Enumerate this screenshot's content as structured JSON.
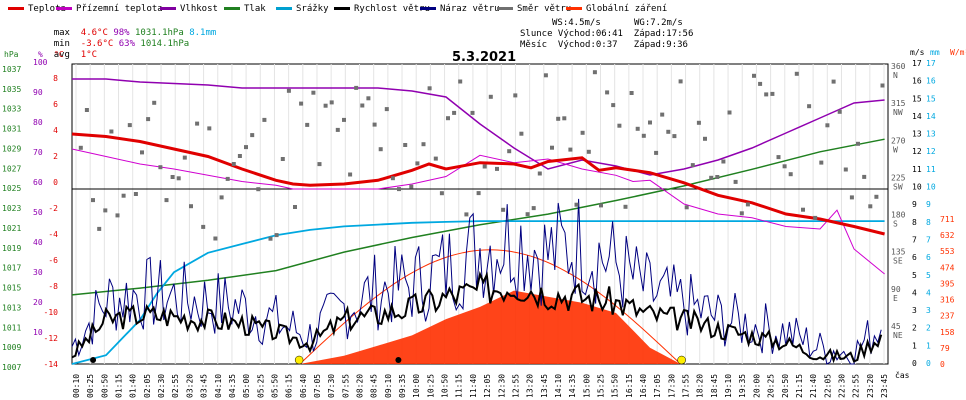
{
  "legend": [
    {
      "label": "Teplota",
      "color": "#e00000"
    },
    {
      "label": "Přízemní teplota",
      "color": "#c000c0"
    },
    {
      "label": "Vlhkost",
      "color": "#8000a0"
    },
    {
      "label": "Tlak",
      "color": "#208020"
    },
    {
      "label": "Srážky",
      "color": "#00a0d0"
    },
    {
      "label": "Rychlost větru",
      "color": "#000000"
    },
    {
      "label": "Náraz větru",
      "color": "#000080"
    },
    {
      "label": "Směr větru",
      "color": "#707070"
    },
    {
      "label": "Globální záření",
      "color": "#ff3000"
    }
  ],
  "stats": {
    "max_label": "max",
    "max_temp": "4.6°C",
    "max_hum": "98%",
    "max_press": "1031.1hPa",
    "rain": "8.1mm",
    "min_label": "min",
    "min_temp": "-3.6°C",
    "min_hum": "63%",
    "min_press": "1014.1hPa",
    "avg_label": "avg",
    "avg_temp": "1°C"
  },
  "info": {
    "ws": "WS:4.5m/s",
    "wg": "WG:7.2m/s",
    "sun": "Slunce Východ:06:41  Západ:17:56",
    "moon": "Měsíc  Východ:0:37   Západ:9:36"
  },
  "date": "5.3.2021",
  "units": {
    "hpa": "hPa",
    "pct": "%",
    "degc": "°C",
    "ms": "m/s",
    "mm": "mm",
    "wm2": "W/m²",
    "cas": "čas"
  },
  "colors": {
    "temp": "#e00000",
    "ground": "#d000d0",
    "hum": "#9000b0",
    "press": "#208020",
    "rain": "#00a8e0",
    "wind": "#000000",
    "gust": "#000080",
    "dir": "#707070",
    "rad": "#ff3000"
  },
  "chart_data": {
    "type": "line",
    "title": "5.3.2021",
    "x_ticks": [
      "00:10",
      "00:25",
      "00:50",
      "01:15",
      "01:40",
      "02:05",
      "02:30",
      "02:55",
      "03:20",
      "03:45",
      "04:10",
      "04:35",
      "05:00",
      "05:25",
      "05:50",
      "06:15",
      "06:40",
      "07:05",
      "07:30",
      "07:55",
      "08:20",
      "08:45",
      "09:10",
      "09:35",
      "10:00",
      "10:25",
      "10:50",
      "11:15",
      "11:40",
      "12:05",
      "12:30",
      "12:55",
      "13:20",
      "13:45",
      "14:10",
      "14:35",
      "15:00",
      "15:25",
      "15:50",
      "16:15",
      "16:40",
      "17:05",
      "17:30",
      "17:55",
      "18:20",
      "18:45",
      "19:10",
      "19:35",
      "20:00",
      "20:25",
      "20:50",
      "21:15",
      "21:40",
      "22:05",
      "22:30",
      "22:55",
      "23:20",
      "23:45"
    ],
    "axes": {
      "pressure_hpa": [
        "1037",
        "1035",
        "1033",
        "1031",
        "1029",
        "1027",
        "1025",
        "1023",
        "1021",
        "1019",
        "1017",
        "1015",
        "1013",
        "1011",
        "1009",
        "1007"
      ],
      "humidity_pct": [
        "100",
        "90",
        "80",
        "70",
        "60",
        "50",
        "40",
        "30",
        "20",
        "10"
      ],
      "temp_c": [
        "8",
        "6",
        "4",
        "2",
        "0",
        "-2",
        "-4",
        "-6",
        "-8",
        "-10",
        "-12",
        "-14"
      ],
      "dir_deg": [
        "360 N",
        "315 NW",
        "270 W",
        "225 SW",
        "180 S",
        "135 SE",
        "90 E",
        "45 NE"
      ],
      "wind_ms": [
        "17",
        "16",
        "15",
        "14",
        "13",
        "12",
        "11",
        "10",
        "9",
        "8",
        "7",
        "6",
        "5",
        "4",
        "3",
        "2",
        "1",
        "0"
      ],
      "rain_mm": [
        "17",
        "16",
        "15",
        "14",
        "13",
        "12",
        "11",
        "10",
        "9",
        "8",
        "7",
        "6",
        "5",
        "4",
        "3",
        "2",
        "1",
        "0"
      ],
      "rad_wm2": [
        "711",
        "632",
        "553",
        "474",
        "395",
        "316",
        "237",
        "158",
        "79",
        "0"
      ]
    },
    "series": [
      {
        "name": "Teplota",
        "unit": "°C",
        "x": [
          0,
          1,
          2,
          3,
          4,
          5,
          6,
          6.5,
          7,
          8,
          9,
          10,
          10.5,
          11,
          12,
          13,
          13.5,
          14,
          15,
          15.5,
          16,
          17,
          18,
          19,
          20,
          21,
          22,
          23,
          23.9
        ],
        "values": [
          4.4,
          4.2,
          3.8,
          3.2,
          2.6,
          1.6,
          0.7,
          0.4,
          0.3,
          0.4,
          0.7,
          1.5,
          2,
          1.6,
          2.1,
          2.0,
          1.7,
          2.2,
          2.5,
          1.5,
          1.7,
          1.3,
          0.5,
          -0.5,
          -1.1,
          -2.0,
          -2.4,
          -3.0,
          -3.6
        ]
      },
      {
        "name": "Přízemní teplota",
        "unit": "°C",
        "x": [
          0,
          1,
          2,
          3,
          5,
          6,
          6.5,
          9,
          10,
          11,
          12,
          13,
          14,
          15,
          16,
          16.5,
          17,
          18,
          19,
          20,
          21,
          22,
          22.5,
          23,
          23.9
        ],
        "values": [
          3.2,
          2.6,
          2.0,
          1.6,
          0.6,
          0.3,
          0,
          0,
          0.4,
          1.0,
          2.7,
          2.1,
          2.4,
          1.6,
          1.1,
          0.6,
          0.7,
          -1.2,
          -2.0,
          -2.3,
          -3.0,
          -3.2,
          -1.7,
          -4.8,
          -6.8
        ]
      },
      {
        "name": "Vlhkost",
        "unit": "%",
        "x": [
          0,
          1,
          2,
          4,
          5,
          6,
          7,
          8,
          9,
          10,
          11,
          12,
          13,
          14,
          15,
          16,
          17,
          18,
          19,
          20,
          21,
          22,
          23,
          23.9
        ],
        "values": [
          95,
          95,
          94,
          93,
          92,
          92,
          92,
          92,
          92,
          91,
          89,
          80,
          72,
          65,
          68,
          66,
          63,
          65,
          68,
          72,
          77,
          82,
          87,
          88
        ]
      },
      {
        "name": "Tlak",
        "unit": "hPa",
        "x": [
          0,
          2,
          4,
          6,
          8,
          10,
          12,
          14,
          16,
          18,
          20,
          22,
          23.9
        ],
        "values": [
          1014.1,
          1014.8,
          1015.6,
          1016.6,
          1018.5,
          1020.0,
          1021.3,
          1022.4,
          1023.8,
          1025.3,
          1027.0,
          1028.8,
          1030.1
        ]
      },
      {
        "name": "Srážky",
        "unit": "mm",
        "x": [
          0,
          1,
          2,
          2.5,
          3,
          4,
          5,
          6,
          7,
          8,
          9,
          10,
          11,
          12,
          13,
          14,
          15,
          16,
          17,
          18,
          20,
          22,
          23.9
        ],
        "values": [
          0,
          0.5,
          2.5,
          4.0,
          5.2,
          6.3,
          6.8,
          7.3,
          7.6,
          7.8,
          7.9,
          8.0,
          8.05,
          8.1,
          8.1,
          8.1,
          8.1,
          8.1,
          8.1,
          8.1,
          8.1,
          8.1,
          8.1
        ]
      },
      {
        "name": "Rychlost větru",
        "unit": "m/s",
        "x": [
          0,
          1,
          2,
          3,
          4,
          5,
          6,
          7,
          8,
          9,
          10,
          11,
          12,
          13,
          14,
          15,
          16,
          17,
          18,
          19,
          20,
          21,
          22,
          23,
          23.9
        ],
        "values": [
          0.5,
          2.5,
          2.8,
          2.7,
          2.5,
          2.3,
          1.8,
          1.2,
          2.5,
          2.8,
          3.2,
          3.8,
          4.2,
          4.5,
          4.0,
          3.8,
          3.5,
          2.8,
          2.5,
          2.0,
          1.6,
          1.2,
          0.5,
          0.4,
          1.8
        ]
      },
      {
        "name": "Náraz větru",
        "unit": "m/s",
        "x": [
          0,
          1,
          2,
          3,
          4,
          5,
          6,
          7,
          8,
          9,
          10,
          11,
          12,
          13,
          14,
          15,
          16,
          17,
          18,
          19,
          20,
          21,
          22,
          23,
          23.9
        ],
        "values": [
          1.0,
          3.6,
          4.0,
          3.8,
          3.5,
          3.2,
          2.4,
          1.6,
          3.2,
          4.2,
          4.5,
          5.4,
          6.6,
          7.2,
          6.2,
          6.9,
          5.6,
          4.0,
          3.4,
          2.6,
          2.2,
          1.8,
          0.9,
          0.6,
          2.5
        ]
      },
      {
        "name": "Globální záření",
        "unit": "W/m²",
        "x": [
          6.7,
          8,
          9,
          10,
          11,
          12,
          13,
          14,
          15,
          16,
          17,
          17.9
        ],
        "values": [
          0,
          40,
          90,
          140,
          220,
          280,
          360,
          330,
          300,
          250,
          80,
          0
        ]
      }
    ]
  }
}
